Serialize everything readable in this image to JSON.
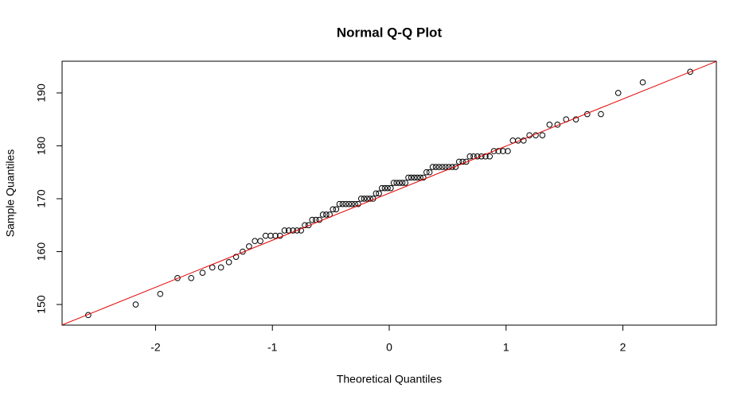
{
  "chart_data": {
    "type": "scatter",
    "title": "Normal Q-Q Plot",
    "x_label": "Theoretical Quantiles",
    "y_label": "Sample Quantiles",
    "x": [
      -2.576,
      -2.17,
      -1.96,
      -1.812,
      -1.695,
      -1.598,
      -1.514,
      -1.44,
      -1.372,
      -1.311,
      -1.254,
      -1.2,
      -1.15,
      -1.103,
      -1.058,
      -1.015,
      -0.974,
      -0.935,
      -0.896,
      -0.86,
      -0.824,
      -0.789,
      -0.755,
      -0.722,
      -0.69,
      -0.659,
      -0.628,
      -0.598,
      -0.568,
      -0.539,
      -0.51,
      -0.482,
      -0.454,
      -0.426,
      -0.399,
      -0.372,
      -0.345,
      -0.319,
      -0.292,
      -0.266,
      -0.24,
      -0.215,
      -0.189,
      -0.164,
      -0.138,
      -0.113,
      -0.088,
      -0.063,
      -0.038,
      -0.013,
      0.013,
      0.038,
      0.063,
      0.088,
      0.113,
      0.138,
      0.164,
      0.189,
      0.215,
      0.24,
      0.266,
      0.292,
      0.319,
      0.345,
      0.372,
      0.399,
      0.426,
      0.454,
      0.482,
      0.51,
      0.539,
      0.568,
      0.598,
      0.628,
      0.659,
      0.69,
      0.722,
      0.755,
      0.789,
      0.824,
      0.86,
      0.896,
      0.935,
      0.974,
      1.015,
      1.058,
      1.103,
      1.15,
      1.2,
      1.254,
      1.311,
      1.372,
      1.44,
      1.514,
      1.598,
      1.695,
      1.812,
      1.96,
      2.17,
      2.576
    ],
    "values": [
      148,
      150,
      152,
      155,
      155,
      156,
      157,
      157,
      158,
      159,
      160,
      161,
      162,
      162,
      163,
      163,
      163,
      163,
      164,
      164,
      164,
      164,
      164,
      165,
      165,
      166,
      166,
      166,
      167,
      167,
      167,
      168,
      168,
      169,
      169,
      169,
      169,
      169,
      169,
      169,
      170,
      170,
      170,
      170,
      170,
      171,
      171,
      172,
      172,
      172,
      172,
      173,
      173,
      173,
      173,
      173,
      174,
      174,
      174,
      174,
      174,
      174,
      175,
      175,
      176,
      176,
      176,
      176,
      176,
      176,
      176,
      176,
      177,
      177,
      177,
      178,
      178,
      178,
      178,
      178,
      178,
      179,
      179,
      179,
      179,
      181,
      181,
      181,
      182,
      182,
      182,
      184,
      184,
      185,
      185,
      186,
      186,
      190,
      192,
      194
    ],
    "color": "#000000",
    "reference_line": {
      "intercept": 171.05,
      "slope": 8.9,
      "color": "#e00000"
    },
    "xlim": [
      -2.8,
      2.8
    ],
    "ylim": [
      146.1,
      196.0
    ],
    "xticks": [
      -2,
      -1,
      0,
      1,
      2
    ],
    "yticks": [
      150,
      160,
      170,
      180,
      190
    ],
    "grid": false
  }
}
